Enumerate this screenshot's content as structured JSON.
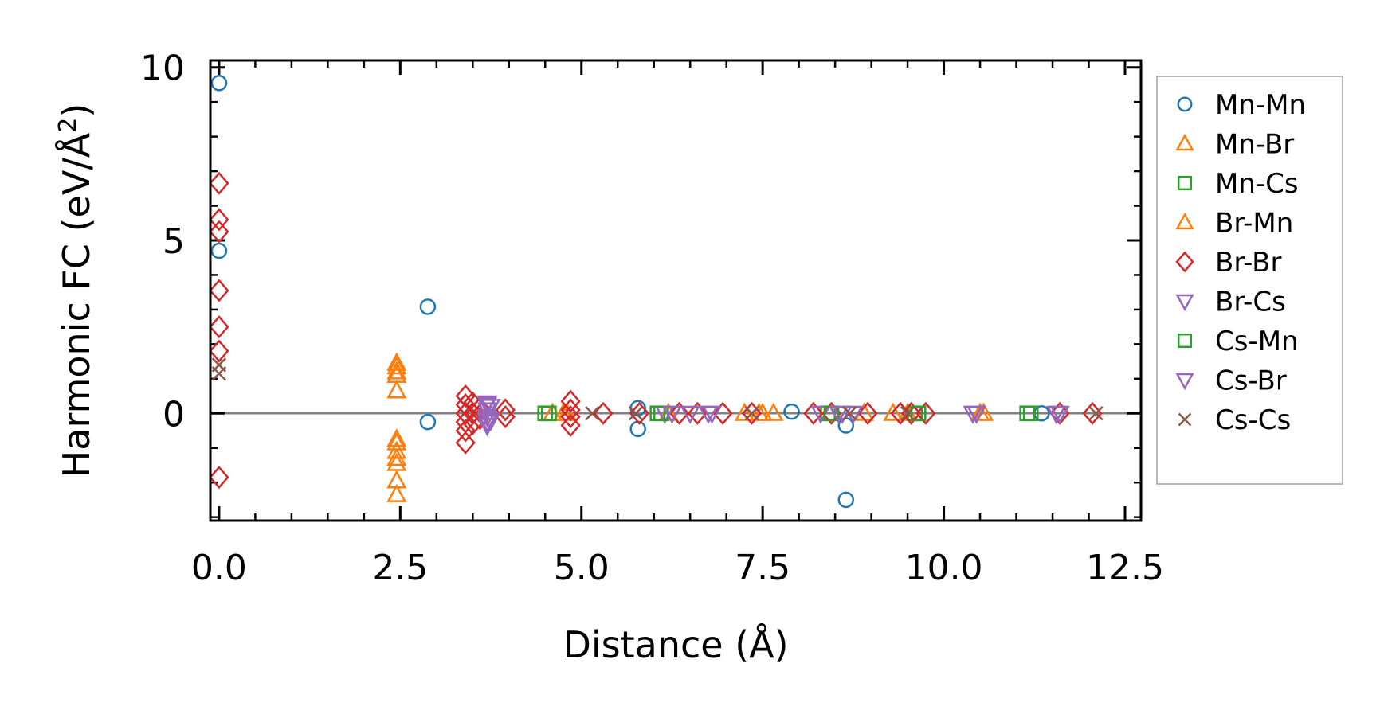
{
  "chart_data": {
    "type": "scatter",
    "title": "",
    "xlabel": "Distance (Å)",
    "ylabel_main": "Harmonic FC (eV/Å",
    "ylabel_sup": "2",
    "ylabel_close": ")",
    "xlim": [
      -0.12,
      12.72
    ],
    "ylim": [
      -3.1,
      10.2
    ],
    "xticks": [
      0.0,
      2.5,
      5.0,
      7.5,
      10.0,
      12.5
    ],
    "xtick_labels": [
      "0.0",
      "2.5",
      "5.0",
      "7.5",
      "10.0",
      "12.5"
    ],
    "yticks": [
      0,
      5,
      10
    ],
    "ytick_labels": [
      "0",
      "5",
      "10"
    ],
    "zero_line": 0,
    "legend_position": "outside-right",
    "series": [
      {
        "name": "Mn-Mn",
        "marker": "circle",
        "color": "#1f77b4",
        "points": [
          [
            0,
            9.55
          ],
          [
            0,
            4.7
          ],
          [
            2.88,
            3.08
          ],
          [
            2.88,
            -0.25
          ],
          [
            5.78,
            0.15
          ],
          [
            5.78,
            -0.45
          ],
          [
            7.9,
            0.05
          ],
          [
            8.65,
            -0.35
          ],
          [
            8.65,
            -2.5
          ],
          [
            11.35,
            0.0
          ]
        ]
      },
      {
        "name": "Mn-Br",
        "marker": "triangle-up",
        "color": "#ff7f0e",
        "points": [
          [
            2.45,
            1.35
          ],
          [
            2.45,
            1.1
          ],
          [
            2.45,
            0.65
          ],
          [
            2.45,
            -0.75
          ],
          [
            2.45,
            -1.1
          ],
          [
            2.45,
            -1.45
          ],
          [
            2.45,
            -1.95
          ],
          [
            2.45,
            -2.35
          ],
          [
            4.6,
            0.0
          ],
          [
            4.8,
            0.0
          ],
          [
            6.2,
            0.0
          ],
          [
            7.25,
            0.0
          ],
          [
            7.45,
            0.0
          ],
          [
            7.65,
            0.0
          ],
          [
            8.9,
            0.0
          ],
          [
            9.5,
            0.0
          ],
          [
            10.5,
            0.0
          ]
        ]
      },
      {
        "name": "Mn-Cs",
        "marker": "square",
        "color": "#2ca02c",
        "points": [
          [
            4.5,
            0.0
          ],
          [
            6.05,
            0.0
          ],
          [
            8.4,
            0.0
          ],
          [
            9.6,
            0.0
          ],
          [
            11.15,
            0.0
          ]
        ]
      },
      {
        "name": "Br-Mn",
        "marker": "triangle-up",
        "color": "#ff7f0e",
        "points": [
          [
            2.45,
            1.45
          ],
          [
            2.45,
            1.2
          ],
          [
            2.45,
            -0.85
          ],
          [
            2.45,
            -1.3
          ],
          [
            4.75,
            0.0
          ],
          [
            7.5,
            0.0
          ],
          [
            9.3,
            0.0
          ],
          [
            10.55,
            0.0
          ]
        ]
      },
      {
        "name": "Br-Br",
        "marker": "diamond",
        "color": "#d62728",
        "points": [
          [
            0,
            6.65
          ],
          [
            0,
            5.6
          ],
          [
            0,
            5.25
          ],
          [
            0,
            3.55
          ],
          [
            0,
            2.5
          ],
          [
            0,
            1.8
          ],
          [
            0,
            -1.85
          ],
          [
            3.4,
            0.5
          ],
          [
            3.4,
            0.25
          ],
          [
            3.4,
            0.0
          ],
          [
            3.4,
            -0.25
          ],
          [
            3.4,
            -0.5
          ],
          [
            3.4,
            -0.85
          ],
          [
            3.5,
            0.3
          ],
          [
            3.5,
            0.0
          ],
          [
            3.5,
            -0.3
          ],
          [
            3.6,
            0.15
          ],
          [
            3.6,
            -0.15
          ],
          [
            3.95,
            0.1
          ],
          [
            3.95,
            -0.1
          ],
          [
            4.85,
            0.35
          ],
          [
            4.85,
            0.1
          ],
          [
            4.85,
            -0.1
          ],
          [
            4.85,
            -0.35
          ],
          [
            5.3,
            0.0
          ],
          [
            5.8,
            0.0
          ],
          [
            6.35,
            0.0
          ],
          [
            6.6,
            0.0
          ],
          [
            6.95,
            0.0
          ],
          [
            7.35,
            0.0
          ],
          [
            8.2,
            0.0
          ],
          [
            8.45,
            0.0
          ],
          [
            8.95,
            0.0
          ],
          [
            9.4,
            0.0
          ],
          [
            9.55,
            0.0
          ],
          [
            9.75,
            0.0
          ],
          [
            11.6,
            0.0
          ],
          [
            12.05,
            0.0
          ]
        ]
      },
      {
        "name": "Br-Cs",
        "marker": "triangle-down",
        "color": "#9467bd",
        "points": [
          [
            3.7,
            0.3
          ],
          [
            3.7,
            0.1
          ],
          [
            3.7,
            -0.1
          ],
          [
            3.7,
            -0.35
          ],
          [
            3.75,
            0.2
          ],
          [
            3.75,
            -0.2
          ],
          [
            6.15,
            0.0
          ],
          [
            6.5,
            0.0
          ],
          [
            6.8,
            0.0
          ],
          [
            8.3,
            0.0
          ],
          [
            8.6,
            0.0
          ],
          [
            10.4,
            0.0
          ],
          [
            11.55,
            0.0
          ]
        ]
      },
      {
        "name": "Cs-Mn",
        "marker": "square",
        "color": "#2ca02c",
        "points": [
          [
            4.55,
            0.0
          ],
          [
            6.1,
            0.0
          ],
          [
            8.45,
            0.0
          ],
          [
            9.65,
            0.0
          ],
          [
            11.2,
            0.0
          ]
        ]
      },
      {
        "name": "Cs-Br",
        "marker": "triangle-down",
        "color": "#9467bd",
        "points": [
          [
            3.7,
            0.25
          ],
          [
            3.7,
            -0.25
          ],
          [
            6.25,
            0.0
          ],
          [
            6.75,
            0.0
          ],
          [
            8.55,
            0.0
          ],
          [
            8.75,
            0.0
          ],
          [
            10.45,
            0.0
          ],
          [
            11.6,
            0.0
          ]
        ]
      },
      {
        "name": "Cs-Cs",
        "marker": "x",
        "color": "#8c564b",
        "points": [
          [
            0,
            1.4
          ],
          [
            0,
            1.15
          ],
          [
            5.15,
            0.0
          ],
          [
            5.75,
            0.0
          ],
          [
            7.35,
            0.0
          ],
          [
            8.7,
            0.0
          ],
          [
            9.5,
            0.0
          ],
          [
            12.1,
            0.0
          ]
        ]
      }
    ]
  }
}
